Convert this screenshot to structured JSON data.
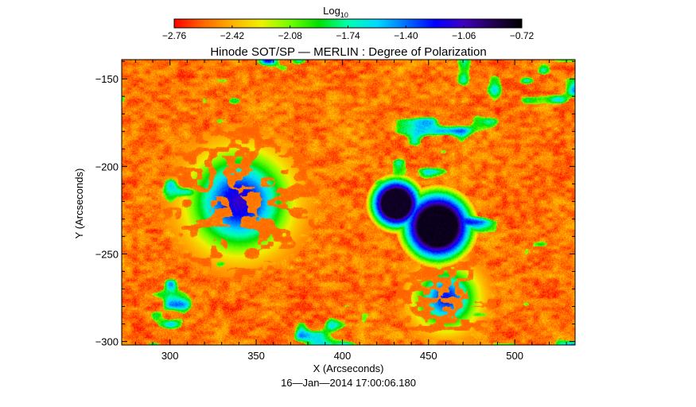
{
  "chart_data": {
    "type": "heatmap",
    "title": "Hinode SOT/SP — MERLIN : Degree of Polarization",
    "xlabel": "X (Arcseconds)",
    "ylabel": "Y (Arcseconds)",
    "footer": "16—Jan—2014 17:00:06.180",
    "xlim": [
      272,
      535
    ],
    "ylim": [
      -302,
      -139
    ],
    "x_ticks": [
      "300",
      "350",
      "400",
      "450",
      "500"
    ],
    "y_ticks": [
      "−150",
      "−200",
      "−250",
      "−300"
    ],
    "x_tick_values": [
      300,
      350,
      400,
      450,
      500
    ],
    "y_tick_values": [
      -150,
      -200,
      -250,
      -300
    ],
    "grid": false,
    "colorbar": {
      "label_main": "Log",
      "label_sub": "10",
      "placement": "top",
      "range": [
        -2.76,
        -0.72
      ],
      "ticks": [
        "−2.76",
        "−2.42",
        "−2.08",
        "−1.74",
        "−1.40",
        "−1.06",
        "−0.72"
      ],
      "colormap": [
        "#ff0000",
        "#ff6600",
        "#ffb000",
        "#f0f000",
        "#70ff00",
        "#00e000",
        "#00ffb0",
        "#00d8ff",
        "#0070ff",
        "#0000ff",
        "#4000c0",
        "#200050",
        "#000000"
      ]
    },
    "features": [
      {
        "name": "sunspot",
        "x": 431,
        "y": -221,
        "r": 8,
        "peak": -0.76
      },
      {
        "name": "sunspot",
        "x": 455,
        "y": -234,
        "r": 11,
        "peak": -0.74
      },
      {
        "name": "plage",
        "x": 340,
        "y": -220,
        "r": 25,
        "peak": -1.15
      },
      {
        "name": "network",
        "x": 460,
        "y": -275,
        "r": 16,
        "peak": -1.3
      }
    ]
  }
}
